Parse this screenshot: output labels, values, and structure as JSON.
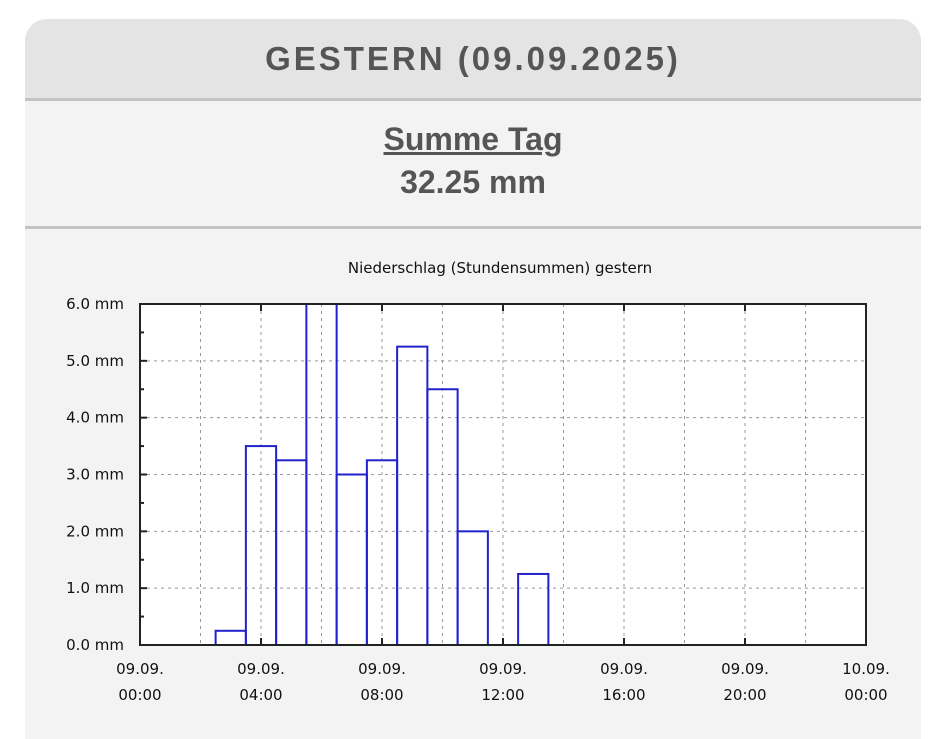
{
  "header": {
    "title": "GESTERN (09.09.2025)"
  },
  "summary": {
    "label": "Summe Tag",
    "value": "32.25 mm"
  },
  "chart_data": {
    "type": "bar",
    "title": "Niederschlag (Stundensummen) gestern",
    "xlabel": "",
    "ylabel": "",
    "x_hours": [
      3,
      4,
      5,
      6,
      7,
      8,
      9,
      10,
      11,
      12,
      13
    ],
    "values": [
      0.25,
      3.5,
      3.25,
      6.0,
      3.0,
      3.25,
      5.25,
      4.5,
      2.0,
      0,
      1.25
    ],
    "unit": "mm",
    "xlim": [
      0,
      24
    ],
    "ylim": [
      0,
      6
    ],
    "y_ticks": [
      "0.0 mm",
      "1.0 mm",
      "2.0 mm",
      "3.0 mm",
      "4.0 mm",
      "5.0 mm",
      "6.0 mm"
    ],
    "x_ticks": [
      [
        "09.09.",
        "00:00"
      ],
      [
        "09.09.",
        "04:00"
      ],
      [
        "09.09.",
        "08:00"
      ],
      [
        "09.09.",
        "12:00"
      ],
      [
        "09.09.",
        "16:00"
      ],
      [
        "09.09.",
        "20:00"
      ],
      [
        "10.09.",
        "00:00"
      ]
    ],
    "grid": true,
    "bar_color": "#2222cc"
  }
}
